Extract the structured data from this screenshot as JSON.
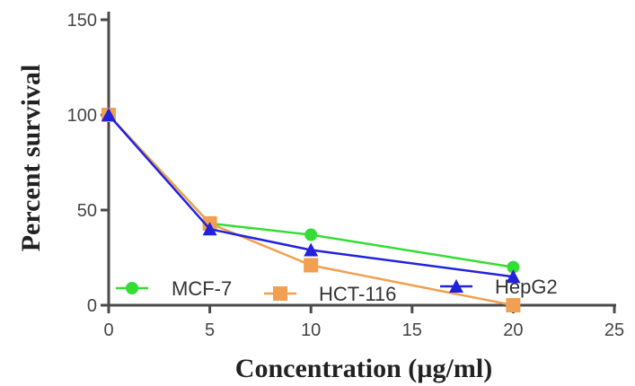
{
  "chart_data": {
    "type": "line",
    "xlabel": "Concentration (µg/ml)",
    "ylabel": "Percent survival",
    "xlim": [
      0,
      25
    ],
    "ylim": [
      0,
      150
    ],
    "xticks": [
      0,
      5,
      10,
      15,
      20,
      25
    ],
    "yticks": [
      0,
      50,
      100,
      150
    ],
    "grid": false,
    "legend_position": "bottom",
    "x": [
      0,
      5,
      10,
      20
    ],
    "series": [
      {
        "name": "MCF-7",
        "marker": "circle",
        "color": "#33dd33",
        "values": [
          100,
          43,
          37,
          20
        ]
      },
      {
        "name": "HCT-116",
        "marker": "square",
        "color": "#f0a050",
        "values": [
          100,
          43,
          21,
          0
        ]
      },
      {
        "name": "HepG2",
        "marker": "triangle",
        "color": "#2222dd",
        "values": [
          100,
          40,
          29,
          15
        ]
      }
    ]
  }
}
